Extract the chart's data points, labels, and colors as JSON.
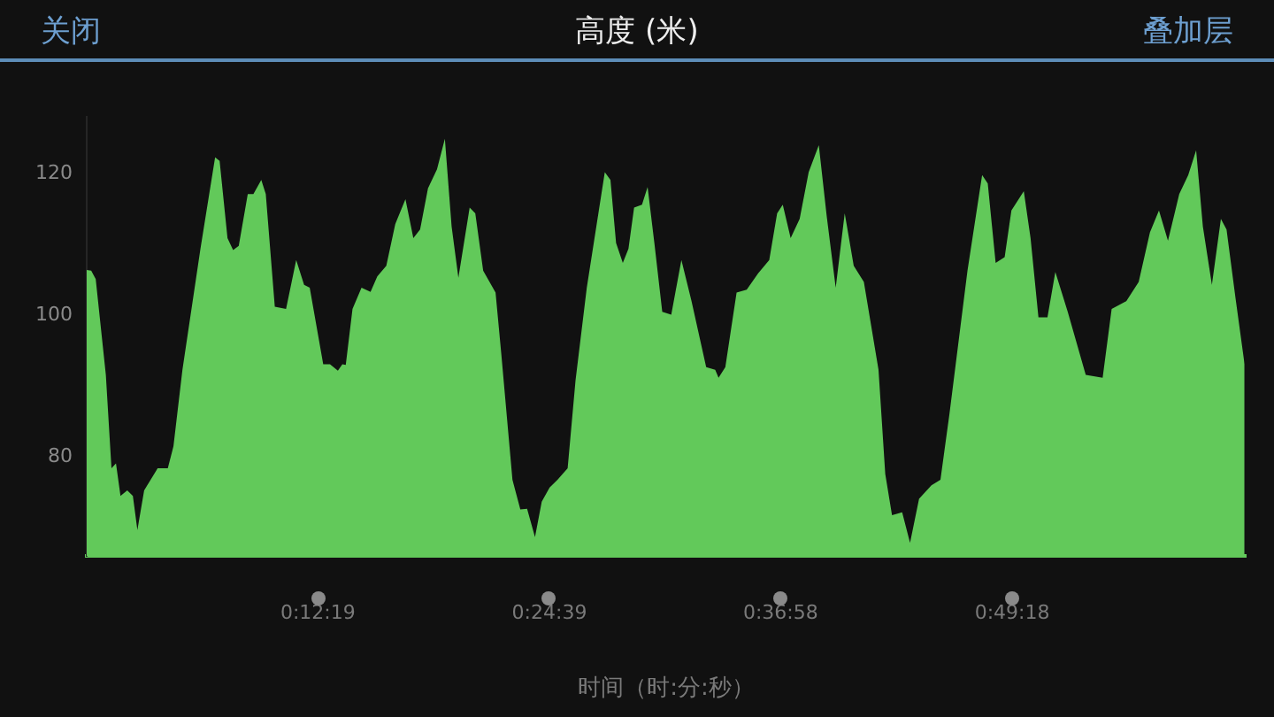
{
  "chart_data": {
    "type": "area",
    "title": "高度 (米)",
    "xlabel": "时间（时:分:秒）",
    "annotations": [
      "关闭",
      "叠加层"
    ],
    "xlim": [
      0,
      1.029
    ],
    "ylim": [
      66,
      128
    ],
    "yticks": [
      80,
      100,
      120
    ],
    "xticks": [
      {
        "value": 0.2053,
        "label": "0:12:19"
      },
      {
        "value": 0.4108,
        "label": "0:24:39"
      },
      {
        "value": 0.6161,
        "label": "0:36:58"
      },
      {
        "value": 0.8217,
        "label": "0:49:18"
      }
    ],
    "grid": false,
    "legend": false,
    "marker": "none",
    "series": [
      {
        "color": "#62c95a",
        "x": [
          0,
          0.004,
          0.008,
          0.017,
          0.022,
          0.026,
          0.03,
          0.036,
          0.041,
          0.045,
          0.051,
          0.063,
          0.072,
          0.077,
          0.085,
          0.101,
          0.114,
          0.118,
          0.125,
          0.13,
          0.135,
          0.143,
          0.148,
          0.155,
          0.159,
          0.167,
          0.177,
          0.186,
          0.193,
          0.198,
          0.21,
          0.216,
          0.223,
          0.227,
          0.23,
          0.236,
          0.244,
          0.252,
          0.258,
          0.266,
          0.274,
          0.283,
          0.29,
          0.296,
          0.303,
          0.311,
          0.318,
          0.324,
          0.33,
          0.34,
          0.345,
          0.352,
          0.363,
          0.368,
          0.378,
          0.385,
          0.391,
          0.398,
          0.404,
          0.411,
          0.418,
          0.427,
          0.434,
          0.444,
          0.46,
          0.465,
          0.47,
          0.476,
          0.481,
          0.486,
          0.493,
          0.498,
          0.504,
          0.511,
          0.519,
          0.528,
          0.537,
          0.55,
          0.558,
          0.561,
          0.567,
          0.577,
          0.586,
          0.596,
          0.606,
          0.613,
          0.618,
          0.625,
          0.633,
          0.641,
          0.65,
          0.657,
          0.665,
          0.673,
          0.681,
          0.69,
          0.703,
          0.709,
          0.715,
          0.724,
          0.731,
          0.739,
          0.75,
          0.758,
          0.766,
          0.782,
          0.795,
          0.8,
          0.807,
          0.815,
          0.821,
          0.832,
          0.838,
          0.845,
          0.853,
          0.86,
          0.871,
          0.887,
          0.902,
          0.91,
          0.923,
          0.934,
          0.944,
          0.952,
          0.96,
          0.97,
          0.978,
          0.985,
          0.991,
          0.999,
          1.007,
          1.012,
          1.02,
          1.028
        ],
        "values": [
          106.4,
          106.3,
          105.1,
          91.6,
          78.4,
          79.1,
          74.5,
          75.3,
          74.5,
          69.7,
          75.3,
          78.4,
          78.4,
          81.5,
          92.3,
          109.4,
          122.3,
          121.8,
          110.9,
          109.2,
          109.8,
          117.1,
          117.1,
          119.1,
          117.1,
          101.2,
          100.9,
          107.8,
          104.3,
          103.9,
          93.1,
          93.1,
          92.2,
          93.1,
          93.0,
          100.9,
          103.9,
          103.3,
          105.5,
          107.0,
          112.9,
          116.4,
          110.9,
          112.1,
          117.9,
          120.6,
          124.9,
          112.5,
          105.3,
          115.2,
          114.4,
          106.3,
          103.2,
          94.7,
          76.8,
          72.6,
          72.7,
          68.7,
          73.7,
          75.7,
          76.8,
          78.4,
          90.8,
          103.9,
          120.2,
          119.1,
          110.2,
          107.4,
          109.4,
          115.2,
          115.6,
          118.1,
          110.2,
          100.5,
          100.1,
          107.8,
          102.0,
          92.7,
          92.3,
          91.2,
          92.7,
          103.2,
          103.6,
          105.9,
          107.8,
          114.4,
          115.6,
          110.9,
          113.6,
          120.2,
          124.0,
          114.0,
          103.9,
          114.4,
          107.0,
          104.7,
          92.3,
          77.6,
          71.8,
          72.2,
          67.9,
          74.1,
          76.0,
          76.8,
          86.1,
          106.3,
          119.8,
          118.6,
          107.4,
          108.2,
          114.8,
          117.5,
          110.9,
          99.7,
          99.7,
          106.1,
          100.5,
          91.6,
          91.2,
          100.9,
          102.0,
          104.7,
          111.7,
          114.8,
          110.5,
          117.1,
          119.8,
          123.3,
          112.5,
          104.3,
          113.6,
          112.1,
          102.4,
          93.1
        ]
      }
    ]
  }
}
